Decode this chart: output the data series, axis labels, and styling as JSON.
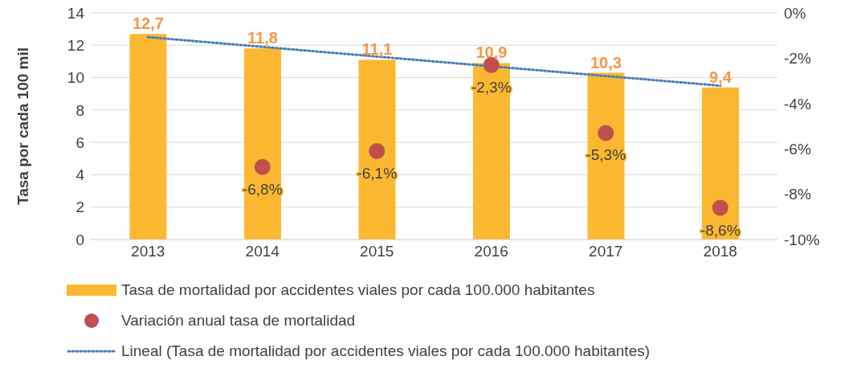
{
  "chart_data": {
    "type": "bar",
    "ylabel": "Tasa por cada 100 mil",
    "categories": [
      "2013",
      "2014",
      "2015",
      "2016",
      "2017",
      "2018"
    ],
    "series": [
      {
        "name": "Tasa de mortalidad por accidentes viales por cada 100.000 habitantes",
        "color": "#fbb830",
        "values": [
          12.7,
          11.8,
          11.1,
          10.9,
          10.3,
          9.4
        ],
        "value_labels": [
          "12,7",
          "11,8",
          "11,1",
          "10,9",
          "10,3",
          "9,4"
        ]
      },
      {
        "type": "scatter",
        "axis": "y2",
        "marker": "circle",
        "name": "Variación anual tasa de mortalidad",
        "color": "#c0504d",
        "values": [
          null,
          -6.8,
          -6.1,
          -2.3,
          -5.3,
          -8.6
        ],
        "value_labels": [
          null,
          "-6,8%",
          "-6,1%",
          "-2,3%",
          "-5,3%",
          "-8,6%"
        ]
      },
      {
        "type": "line",
        "line_style": "dotted",
        "name": "Lineal (Tasa de mortalidad por accidentes viales por cada 100.000 habitantes)",
        "color": "#4a7ebb",
        "values": [
          12.5,
          11.9,
          11.3,
          10.7,
          10.1,
          9.5
        ]
      }
    ],
    "ylim": [
      0,
      14
    ],
    "yticks": [
      0,
      2,
      4,
      6,
      8,
      10,
      12,
      14
    ],
    "y2lim": [
      -10,
      0
    ],
    "y2ticks": [
      {
        "value": -10,
        "label": "-10%"
      },
      {
        "value": -8,
        "label": "-8%"
      },
      {
        "value": -6,
        "label": "-6%"
      },
      {
        "value": -4,
        "label": "-4%"
      },
      {
        "value": -2,
        "label": "-2%"
      },
      {
        "value": 0,
        "label": "0%"
      }
    ],
    "grid": "y",
    "legend": "bottom"
  }
}
